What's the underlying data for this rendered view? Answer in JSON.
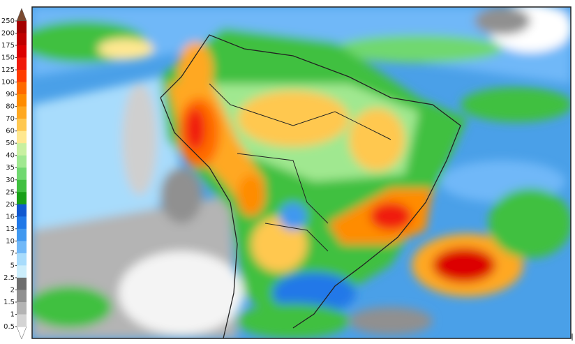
{
  "colorbar": {
    "labels": [
      250,
      200,
      175,
      150,
      125,
      100,
      90,
      80,
      70,
      60,
      50,
      40,
      35,
      30,
      25,
      20,
      16,
      13,
      10,
      7,
      5,
      2.5,
      2,
      1.5,
      1,
      0.5
    ],
    "colors": [
      "#a40000",
      "#c00000",
      "#dc0000",
      "#f01a0a",
      "#ff3c00",
      "#ff6a00",
      "#ff8c00",
      "#ffa820",
      "#ffc850",
      "#ffe890",
      "#c8f0a0",
      "#a0e890",
      "#70d870",
      "#40c040",
      "#18a018",
      "#1058d0",
      "#2078e8",
      "#4098f0",
      "#70b8f8",
      "#a8dcfc",
      "#cceefc",
      "#6e6e6e",
      "#909090",
      "#b4b4b4",
      "#d4d4d4"
    ],
    "top_color": "#7a4a30",
    "bottom_color": "#ffffff"
  }
}
